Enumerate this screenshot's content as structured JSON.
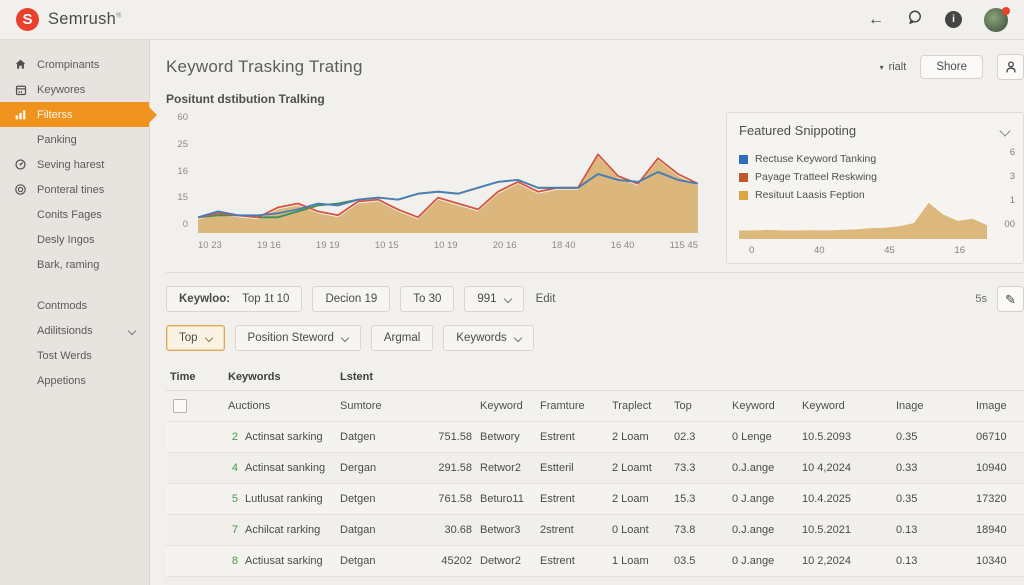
{
  "topbar": {
    "brand": "Semrush",
    "trademark": "®"
  },
  "sidebar": {
    "items": [
      {
        "label": "Crompinants",
        "icon": "home"
      },
      {
        "label": "Keywores",
        "icon": "calendar"
      },
      {
        "label": "Filterss",
        "icon": "chart-bars",
        "active": true
      },
      {
        "label": "Panking"
      },
      {
        "label": "Seving harest",
        "icon": "gauge"
      },
      {
        "label": "Ponteral tines",
        "icon": "target"
      },
      {
        "label": "Conits Fages"
      },
      {
        "label": "Desly Ingos"
      },
      {
        "label": "Bark, raming"
      },
      {
        "label": "Contmods",
        "gap": true
      },
      {
        "label": "Adilitsionds",
        "chevron": true
      },
      {
        "label": "Tost Werds"
      },
      {
        "label": "Appetions"
      }
    ]
  },
  "header": {
    "title": "Keyword Trasking Trating",
    "range_label": "rialt",
    "share_label": "Shore"
  },
  "filters": {
    "row1": [
      {
        "type": "chip-labeled",
        "label": "Keywloo:",
        "value": "Top 1t 10"
      },
      {
        "type": "chip",
        "value": "Decion 19"
      },
      {
        "type": "chip",
        "value": "To 30"
      },
      {
        "type": "chip-dropdown",
        "value": "991"
      },
      {
        "type": "link",
        "value": "Edit"
      }
    ],
    "count_label": "5s",
    "row2": [
      {
        "type": "chip-dropdown",
        "value": "Top",
        "active": true
      },
      {
        "type": "chip-dropdown",
        "value": "Position   Steword",
        "wide": true
      },
      {
        "type": "chip",
        "value": "Argmal"
      },
      {
        "type": "chip-dropdown",
        "value": "Keywords"
      }
    ]
  },
  "table": {
    "group_headers": [
      "Time",
      "Keywords",
      "Lstent"
    ],
    "sub_headers": [
      "",
      "Auctions",
      "Sumtore",
      "",
      "Keyword",
      "Framture",
      "Traplect",
      "Top",
      "Keyword",
      "Keyword",
      "Inage",
      "Image"
    ],
    "rows": [
      {
        "num": "2",
        "cells": [
          "Actinsat sarking",
          "Datgen",
          "751.58",
          "Betwory",
          "Estrent",
          "2 Loam",
          "02.3",
          "0 Lenge",
          "10.5.2093",
          "0.35",
          "06710"
        ]
      },
      {
        "num": "4",
        "cells": [
          "Actinsat sanking",
          "Dergan",
          "291.58",
          "Retwor2",
          "Estteril",
          "2 Loamt",
          "73.3",
          "0.J.ange",
          "10 4,2024",
          "0.33",
          "10940"
        ]
      },
      {
        "num": "5",
        "cells": [
          "Lutlusat ranking",
          "Detgen",
          "761.58",
          "Beturo11",
          "Estrent",
          "2 Loam",
          "15.3",
          "0 J.ange",
          "10.4.2025",
          "0.35",
          "17320"
        ]
      },
      {
        "num": "7",
        "cells": [
          "Achilcat rarking",
          "Datgan",
          "30.68",
          "Betwor3",
          "2strent",
          "0 Loant",
          "73.8",
          "0.J.ange",
          "10.5.2021",
          "0.13",
          "18940"
        ]
      },
      {
        "num": "8",
        "cells": [
          "Actiusat sarking",
          "Detgan",
          "45202",
          "Detwor2",
          "Estrent",
          "1 Loam",
          "03.5",
          "0 J.ange",
          "10 2,2024",
          "0.13",
          "10340"
        ]
      }
    ]
  },
  "colors": {
    "accent_orange": "#ef921e",
    "brand_red": "#e8402d",
    "line_blue": "#4a7db8",
    "line_red": "#d4543e",
    "line_green": "#3d9158",
    "area_tan": "#d9b273",
    "row_number_green": "#3f9e44"
  },
  "chart_data": [
    {
      "type": "area",
      "title": "Positunt dstibution Tralking",
      "ylim": [
        0,
        60
      ],
      "y_ticks": [
        "60",
        "25",
        "16",
        "15",
        "0"
      ],
      "x_ticks": [
        "10 23",
        "19 16",
        "19 19",
        "10 15",
        "10 19",
        "20 16",
        "18 40",
        "16 40",
        "115 45"
      ],
      "grid": false,
      "legend_position": "none",
      "series": [
        {
          "name": "Rectuse Keyword Tanking",
          "color": "#4a7db8",
          "values": [
            8,
            11,
            9,
            9,
            10,
            12,
            15,
            14,
            17,
            18,
            17,
            20,
            21,
            20,
            23,
            26,
            27,
            23,
            23,
            23,
            30,
            27,
            26,
            31,
            27,
            25
          ]
        },
        {
          "name": "Payage Tratteel Reskwing",
          "color": "#d4543e",
          "values": [
            8,
            10,
            9,
            8,
            13,
            15,
            11,
            9,
            16,
            17,
            12,
            8,
            18,
            15,
            12,
            21,
            26,
            21,
            23,
            23,
            40,
            29,
            25,
            38,
            30,
            25
          ]
        },
        {
          "name": "Resituut Laasis Feption",
          "color": "#3d9158",
          "values": [
            8,
            9,
            9,
            8,
            8,
            11,
            14,
            15,
            17,
            18,
            17,
            20,
            21,
            20,
            23,
            26,
            27,
            23,
            23,
            23,
            30,
            27,
            26,
            31,
            27,
            25
          ]
        }
      ],
      "area_series": {
        "name": "distribution fill",
        "color": "#d9b273",
        "values": [
          7,
          9,
          8,
          7,
          12,
          14,
          10,
          8,
          15,
          16,
          11,
          7,
          17,
          14,
          11,
          20,
          25,
          20,
          22,
          22,
          39,
          28,
          24,
          37,
          29,
          24
        ]
      }
    },
    {
      "type": "area",
      "title": "Featured Snippoting",
      "ylim": [
        0,
        6
      ],
      "y_ticks": [
        "6",
        "3",
        "1",
        "00"
      ],
      "x_ticks": [
        "0",
        "40",
        "45",
        "16"
      ],
      "grid": false,
      "legend_position": "top-left",
      "legend": [
        {
          "label": "Rectuse Keyword Tanking",
          "color": "#2f6bbf"
        },
        {
          "label": "Payage Tratteel Reskwing",
          "color": "#c2562f"
        },
        {
          "label": "Resituut Laasis Feption",
          "color": "#d9a843"
        }
      ],
      "series": [
        {
          "name": "featured snippet area",
          "color": "#d9b273",
          "values": [
            0.8,
            0.8,
            0.85,
            0.8,
            0.8,
            0.82,
            0.8,
            0.85,
            0.9,
            1.0,
            1.05,
            1.2,
            1.5,
            3.4,
            2.3,
            1.7,
            1.9,
            1.3
          ]
        }
      ]
    }
  ]
}
